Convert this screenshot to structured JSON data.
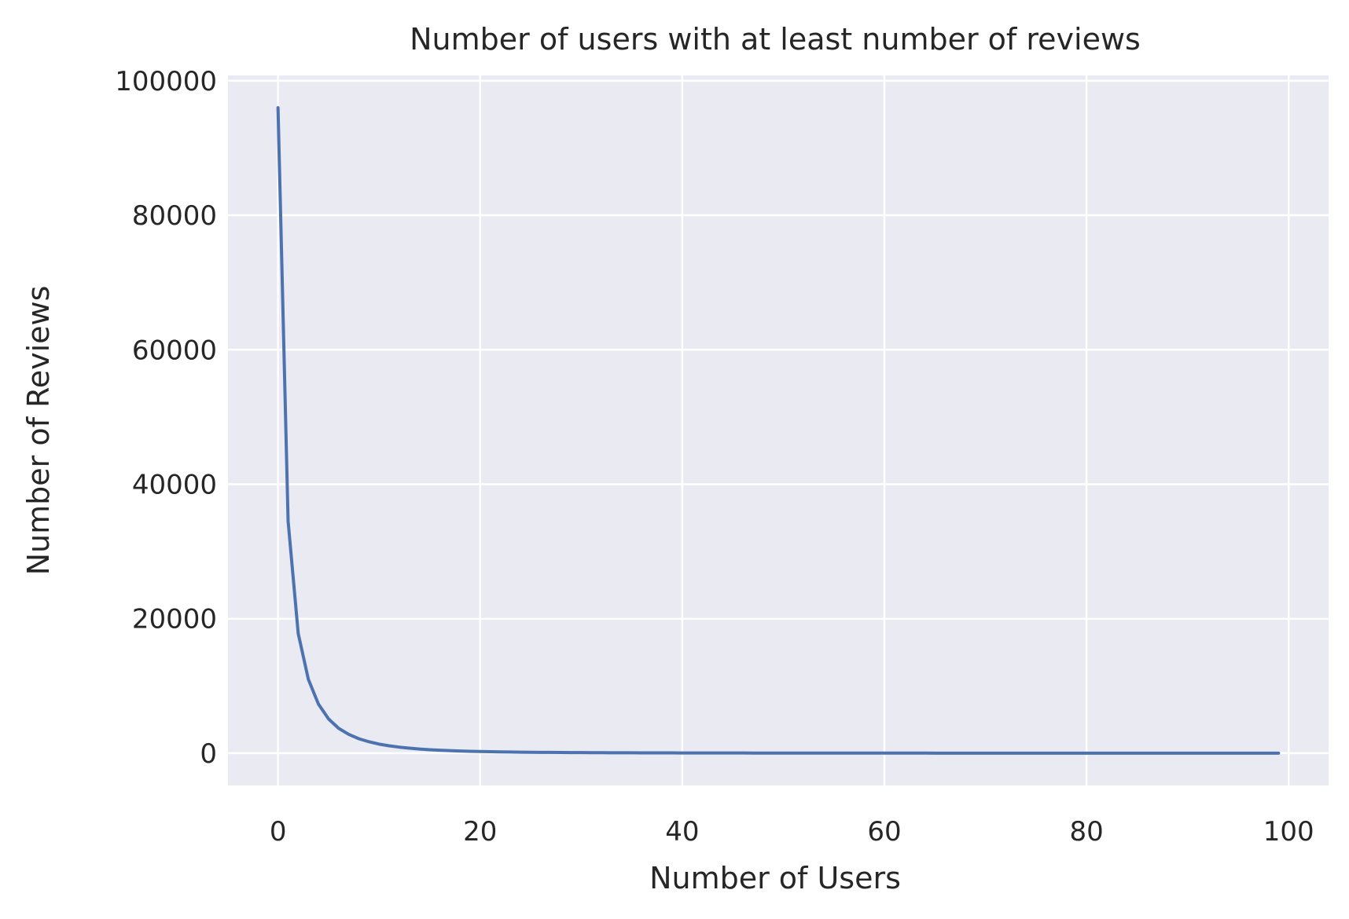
{
  "chart_data": {
    "type": "line",
    "title": "Number of users with at least number of reviews",
    "xlabel": "Number of Users",
    "ylabel": "Number of Reviews",
    "xlim": [
      -4.95,
      103.95
    ],
    "ylim": [
      -4800,
      100800
    ],
    "x_ticks": [
      0,
      20,
      40,
      60,
      80,
      100
    ],
    "y_ticks": [
      0,
      20000,
      40000,
      60000,
      80000,
      100000
    ],
    "grid": true,
    "colors": {
      "background": "#eaeaf2",
      "grid": "#ffffff",
      "line": "#4c72b0",
      "text": "#262626"
    },
    "series": [
      {
        "x": [
          0,
          1,
          2,
          3,
          4,
          5,
          6,
          7,
          8,
          9,
          10,
          11,
          12,
          13,
          14,
          15,
          16,
          17,
          18,
          19,
          20,
          21,
          22,
          23,
          24,
          25,
          26,
          27,
          28,
          29,
          30,
          31,
          32,
          33,
          34,
          35,
          36,
          37,
          38,
          39,
          40,
          41,
          42,
          43,
          44,
          45,
          46,
          47,
          48,
          49,
          50,
          51,
          52,
          53,
          54,
          55,
          56,
          57,
          58,
          59,
          60,
          61,
          62,
          63,
          64,
          65,
          66,
          67,
          68,
          69,
          70,
          71,
          72,
          73,
          74,
          75,
          76,
          77,
          78,
          79,
          80,
          81,
          82,
          83,
          84,
          85,
          86,
          87,
          88,
          89,
          90,
          91,
          92,
          93,
          94,
          95,
          96,
          97,
          98,
          99
        ],
        "y": [
          96000,
          34500,
          17800,
          11000,
          7300,
          5100,
          3700,
          2800,
          2150,
          1700,
          1350,
          1100,
          900,
          750,
          620,
          520,
          440,
          380,
          330,
          285,
          250,
          220,
          195,
          175,
          155,
          140,
          127,
          115,
          104,
          95,
          87,
          80,
          73,
          67,
          62,
          57,
          53,
          49,
          46,
          43,
          40,
          37,
          35,
          33,
          31,
          29,
          27,
          26,
          24,
          23,
          22,
          20,
          19,
          18,
          17,
          16,
          15,
          15,
          14,
          13,
          13,
          12,
          12,
          11,
          11,
          10,
          10,
          9,
          9,
          9,
          8,
          8,
          8,
          7,
          7,
          7,
          6,
          6,
          6,
          6,
          5,
          5,
          5,
          5,
          5,
          4,
          4,
          4,
          4,
          4,
          3,
          3,
          3,
          3,
          3,
          3,
          3,
          2,
          2,
          2
        ]
      }
    ]
  }
}
